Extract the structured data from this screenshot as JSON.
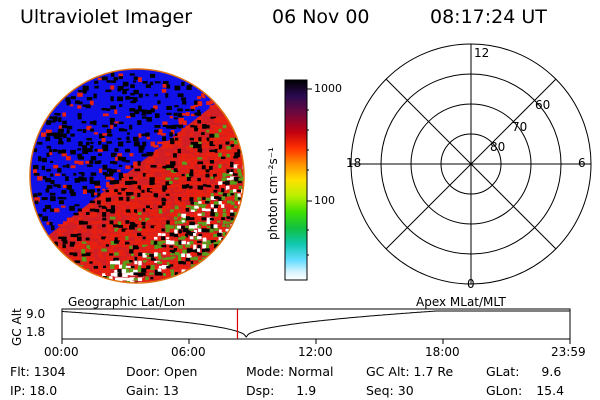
{
  "header": {
    "instrument": "Ultraviolet Imager",
    "date": "06 Nov 00",
    "time": "08:17:24 UT"
  },
  "colorbar": {
    "tick_labels": [
      "1000",
      "100"
    ],
    "units_label": "photon cm⁻²s⁻¹",
    "colors": [
      "#000000",
      "#1a0a3a",
      "#4a1060",
      "#8c0020",
      "#d00000",
      "#ff4010",
      "#ff9000",
      "#ffe000",
      "#c8f000",
      "#50e010",
      "#10c030",
      "#10c8a0",
      "#40d8ff",
      "#bff0ff",
      "#ffffff"
    ]
  },
  "polar_grid": {
    "mlt_labels": {
      "top": "12",
      "left": "18",
      "right": "6",
      "bottom": "0"
    },
    "lat_labels": [
      "60",
      "70",
      "80"
    ]
  },
  "timeline": {
    "ylabel": "GC Alt",
    "left_caption": "Geographic Lat/Lon",
    "right_caption": "Apex MLat/MLT",
    "y_ticks": [
      "9.0",
      "1.8"
    ],
    "x_ticks": [
      "00:00",
      "06:00",
      "12:00",
      "18:00",
      "23:59"
    ],
    "marker_time": "08:17:24",
    "marker_color": "#e00000"
  },
  "status": {
    "flt_label": "Flt:",
    "flt_value": "1304",
    "ip_label": "IP:",
    "ip_value": "18.0",
    "door_label": "Door:",
    "door_value": "Open",
    "gain_label": "Gain:",
    "gain_value": "13",
    "mode_label": "Mode:",
    "mode_value": "Normal",
    "dsp_label": "Dsp:",
    "dsp_value": "1.9",
    "gcalt_label": "GC Alt:",
    "gcalt_value": "1.7 Re",
    "seq_label": "Seq:",
    "seq_value": "30",
    "glat_label": "GLat:",
    "glat_value": "9.6",
    "glon_label": "GLon:",
    "glon_value": "15.4"
  },
  "image_colors": {
    "blue": "#1010e8",
    "red": "#e82010",
    "green": "#5a9e1a",
    "white": "#ffffff",
    "black": "#000000",
    "rim": "#e07010"
  }
}
